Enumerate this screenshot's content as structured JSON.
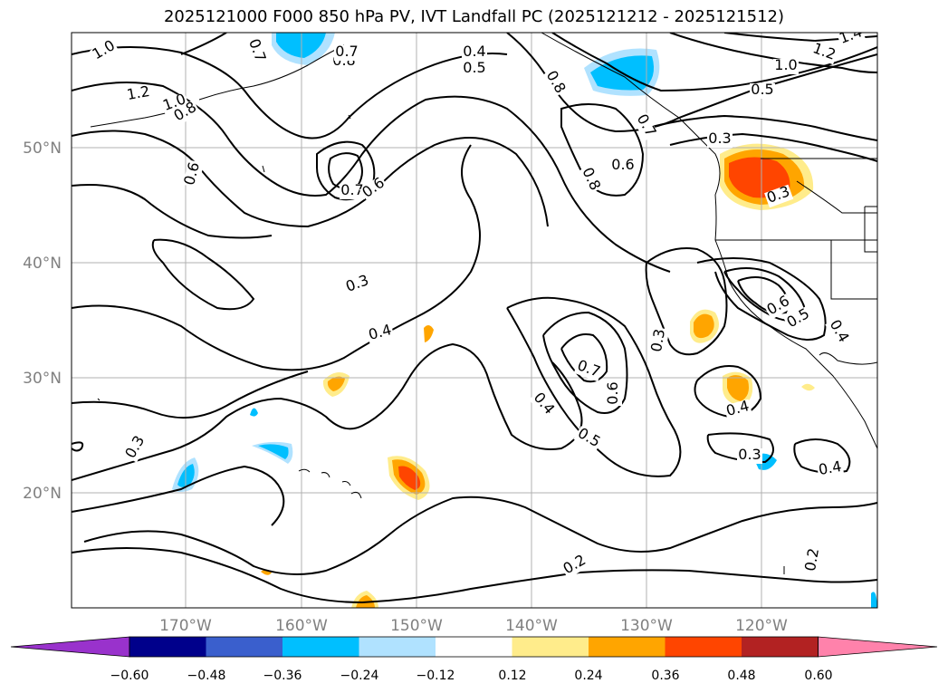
{
  "title": "2025121000 F000 850 hPa PV, IVT Landfall PC (2025121212 - 2025121512)",
  "map": {
    "lon_range": [
      -180,
      -110
    ],
    "lat_range": [
      10,
      60
    ],
    "lat_ticks": [
      "20°N",
      "30°N",
      "40°N",
      "50°N"
    ],
    "lon_ticks": [
      "170°W",
      "160°W",
      "150°W",
      "140°W",
      "130°W",
      "120°W"
    ],
    "grid": true,
    "tick_label_color": "#808080",
    "contour_labels": [
      "1.0",
      "0.7",
      "0.8",
      "0.7",
      "0.4",
      "0.5",
      "1.2",
      "1.0",
      "0.8",
      "0.6",
      "0.7",
      "0.6",
      "0.8",
      "0.7",
      "0.6",
      "0.8",
      "1.0",
      "1.2",
      "1.4",
      "0.5",
      "0.3",
      "0.3",
      "0.3",
      "0.4",
      "0.6",
      "0.5",
      "0.4",
      "0.3",
      "0.7",
      "0.6",
      "0.4",
      "0.5",
      "0.4",
      "0.3",
      "0.4",
      "0.3",
      "0.2",
      "0.2"
    ]
  },
  "colorbar": {
    "ticks": [
      "−0.60",
      "−0.48",
      "−0.36",
      "−0.24",
      "−0.12",
      "0.12",
      "0.24",
      "0.36",
      "0.48",
      "0.60"
    ],
    "colors": [
      "#9932cc",
      "#00008b",
      "#3a5fcd",
      "#00bfff",
      "#b0e2ff",
      "#ffffff",
      "#ffec8b",
      "#ffa500",
      "#ff4500",
      "#b22222",
      "#ff82ab"
    ]
  }
}
